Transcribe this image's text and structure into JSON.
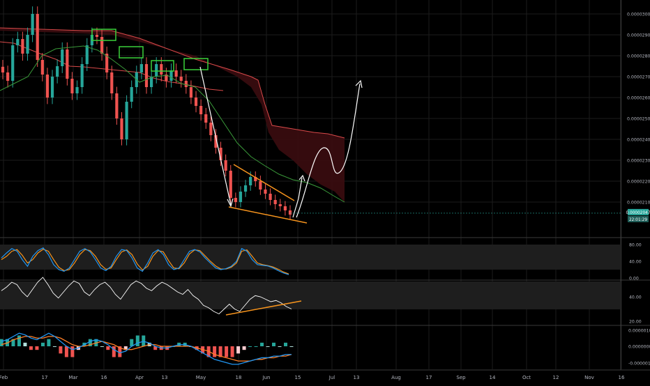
{
  "colors": {
    "background": "#000000",
    "grid": "#1c1c1c",
    "axis_text": "#b2b5be",
    "separator": "#3a3a3a",
    "candle_up": "#26a69a",
    "candle_down": "#ef5350",
    "cloud_fill": "#3b0c10",
    "cloud_top_line": "#d94a4a",
    "baseline_green": "#3a9a3a",
    "annotation_white": "#ffffff",
    "annotation_orange": "#f7941d",
    "box_green": "#3ad13a",
    "stoch_blue": "#2196f3",
    "stoch_orange": "#f7941d",
    "rsi_white": "#ffffff",
    "band_fill": "#1e1e1e",
    "macd_blue": "#2196f3",
    "macd_orange": "#ff7f27",
    "hist_up": "#26a69a",
    "hist_down": "#ef5350",
    "price_badge": "#26a69a"
  },
  "x_axis": {
    "labels": [
      "Feb",
      "17",
      "Mar",
      "16",
      "Apr",
      "13",
      "May",
      "18",
      "Jun",
      "15",
      "Jul",
      "13",
      "Aug",
      "17",
      "Sep",
      "14",
      "Oct",
      "12",
      "Nov",
      "16"
    ]
  },
  "price_axis": {
    "ticks": [
      "0.00003000",
      "0.00002900",
      "0.00002800",
      "0.00002700",
      "0.00002600",
      "0.00002500",
      "0.00002400",
      "0.00002300",
      "0.00002200",
      "0.00002100"
    ],
    "current_price": "0.00002047",
    "countdown": "22:01:29"
  },
  "stoch_axis": {
    "ticks": [
      "80.00",
      "40.00",
      "0.00"
    ]
  },
  "rsi_axis": {
    "ticks": [
      "40.00",
      "20.00"
    ]
  },
  "macd_axis": {
    "ticks": [
      "0.00000100",
      "0.00000000",
      "-0.00000100"
    ]
  },
  "chart_data": {
    "type": "candlestick",
    "title": "",
    "panels": [
      "price",
      "stochastic",
      "rsi",
      "macd"
    ],
    "price": {
      "x_start": "Feb 1",
      "x_end": "Jun 13",
      "ylim": [
        2.01e-05,
        3.1e-05
      ],
      "close_series": [
        2.72e-05,
        2.68e-05,
        2.85e-05,
        2.88e-05,
        2.81e-05,
        2.9e-05,
        3e-05,
        2.78e-05,
        2.71e-05,
        2.6e-05,
        2.7e-05,
        2.75e-05,
        2.83e-05,
        2.69e-05,
        2.62e-05,
        2.65e-05,
        2.76e-05,
        2.85e-05,
        2.9e-05,
        2.89e-05,
        2.81e-05,
        2.72e-05,
        2.62e-05,
        2.5e-05,
        2.4e-05,
        2.58e-05,
        2.65e-05,
        2.72e-05,
        2.76e-05,
        2.65e-05,
        2.7e-05,
        2.76e-05,
        2.71e-05,
        2.68e-05,
        2.73e-05,
        2.7e-05,
        2.68e-05,
        2.65e-05,
        2.6e-05,
        2.56e-05,
        2.52e-05,
        2.48e-05,
        2.42e-05,
        2.36e-05,
        2.3e-05,
        2.25e-05,
        2.12e-05,
        2.1e-05,
        2.15e-05,
        2.18e-05,
        2.22e-05,
        2.2e-05,
        2.16e-05,
        2.14e-05,
        2.11e-05,
        2.09e-05,
        2.08e-05,
        2.06e-05,
        2.04e-05
      ],
      "current_price": 2.047e-05
    },
    "stochastic": {
      "ylim": [
        0,
        100
      ],
      "k": [
        60,
        75,
        88,
        80,
        55,
        35,
        65,
        82,
        90,
        70,
        40,
        25,
        20,
        30,
        55,
        80,
        88,
        78,
        55,
        30,
        22,
        35,
        65,
        85,
        82,
        60,
        30,
        20,
        45,
        75,
        85,
        70,
        40,
        25,
        30,
        55,
        80,
        85,
        78,
        60,
        45,
        30,
        25,
        28,
        35,
        50,
        88,
        80,
        55,
        40,
        38,
        36,
        30,
        22,
        15,
        10
      ],
      "d": [
        55,
        65,
        80,
        85,
        68,
        45,
        55,
        75,
        86,
        80,
        55,
        32,
        22,
        25,
        45,
        70,
        85,
        82,
        65,
        40,
        26,
        30,
        55,
        78,
        84,
        70,
        42,
        24,
        35,
        65,
        82,
        78,
        52,
        30,
        28,
        45,
        72,
        84,
        82,
        66,
        50,
        36,
        27,
        27,
        32,
        45,
        80,
        84,
        65,
        45,
        40,
        37,
        33,
        26,
        18,
        12
      ]
    },
    "rsi": {
      "ylim": [
        15,
        60
      ],
      "values": [
        45,
        48,
        52,
        50,
        44,
        40,
        46,
        52,
        56,
        50,
        43,
        39,
        44,
        49,
        53,
        51,
        44,
        41,
        46,
        50,
        52,
        48,
        42,
        38,
        44,
        50,
        53,
        51,
        47,
        45,
        49,
        52,
        50,
        47,
        44,
        42,
        46,
        41,
        38,
        33,
        31,
        28,
        26,
        30,
        34,
        30,
        28,
        33,
        38,
        41,
        40,
        38,
        36,
        37,
        35,
        32,
        30
      ]
    },
    "macd": {
      "ylim": [
        -1.5e-06,
        1.2e-06
      ],
      "macd": [
        3e-07,
        4e-07,
        6e-07,
        8e-07,
        7e-07,
        5e-07,
        4e-07,
        6e-07,
        8e-07,
        6e-07,
        3e-07,
        0.0,
        -2e-07,
        -1e-07,
        1e-07,
        3e-07,
        4e-07,
        3e-07,
        1e-07,
        -2e-07,
        -4e-07,
        -3e-07,
        0.0,
        2e-07,
        3e-07,
        2e-07,
        0.0,
        -1e-07,
        -1e-07,
        0.0,
        1e-07,
        1e-07,
        0.0,
        -2e-07,
        -4e-07,
        -6e-07,
        -8e-07,
        -9e-07,
        -1e-06,
        -1.1e-06,
        -1.1e-06,
        -1e-06,
        -9e-07,
        -8e-07,
        -7e-07,
        -7e-07,
        -6e-07,
        -6e-07,
        -5e-07,
        -5e-07
      ],
      "signal": [
        1e-07,
        2e-07,
        4e-07,
        5e-07,
        6e-07,
        6e-07,
        5e-07,
        5e-07,
        6e-07,
        6e-07,
        5e-07,
        3e-07,
        1e-07,
        0.0,
        0.0,
        1e-07,
        2e-07,
        3e-07,
        2e-07,
        1e-07,
        -1e-07,
        -2e-07,
        -2e-07,
        -1e-07,
        0.0,
        1e-07,
        1e-07,
        0.0,
        0.0,
        0.0,
        0.0,
        0.0,
        0.0,
        -1e-07,
        -2e-07,
        -3e-07,
        -5e-07,
        -6e-07,
        -7e-07,
        -8e-07,
        -9e-07,
        -9e-07,
        -9e-07,
        -8e-07,
        -8e-07,
        -7e-07,
        -7e-07,
        -6e-07,
        -6e-07,
        -5e-07
      ]
    }
  }
}
